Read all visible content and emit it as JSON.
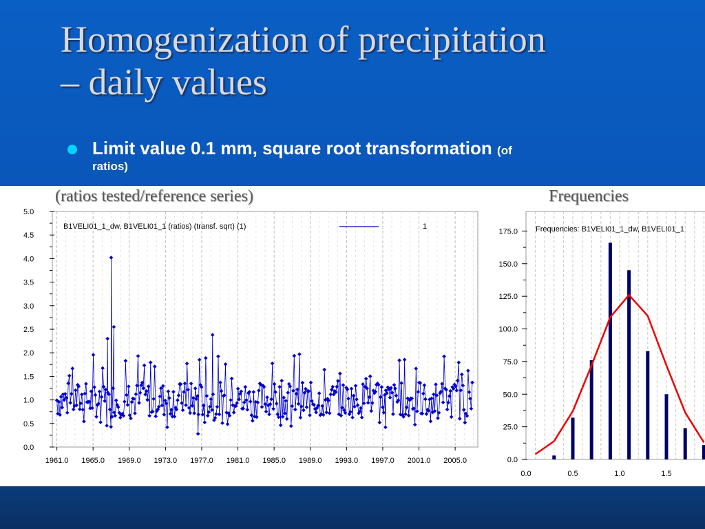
{
  "slide": {
    "title_line1": "Homogenization of precipitation",
    "title_line2": "– daily values",
    "bullet_main": "Limit value 0.1 mm,  square root transformation",
    "bullet_small": "(of",
    "bullet_cont": "ratios)",
    "caption_left": "(ratios tested/reference series)",
    "caption_right": "Frequencies"
  },
  "colors": {
    "bullet": "#00d4ff",
    "series": "#0000cc",
    "bars": "#000066",
    "curve": "#ee0000"
  },
  "chart_data": [
    {
      "type": "line",
      "legend_text": "B1VELI01_1_dw, B1VELI01_1 (ratios) (transf. sqrt) (1)",
      "legend_value": "1",
      "x_tick_labels": [
        "1961.0",
        "1965.0",
        "1969.0",
        "1973.0",
        "1977.0",
        "1981.0",
        "1985.0",
        "1989.0",
        "1993.0",
        "1997.0",
        "2001.0",
        "2005.0"
      ],
      "y_tick_labels": [
        "0.0",
        "0.5",
        "1.0",
        "1.5",
        "2.0",
        "2.5",
        "3.0",
        "3.5",
        "4.0",
        "4.5",
        "5.0"
      ],
      "xlim": [
        1960.5,
        2007.5
      ],
      "ylim": [
        0,
        5
      ],
      "grid": "vertical dashed",
      "notable_points": [
        [
          1967.0,
          4.02
        ],
        [
          1967.3,
          2.55
        ],
        [
          1966.6,
          2.3
        ],
        [
          1978.2,
          2.38
        ],
        [
          1976.6,
          0.28
        ],
        [
          1997.3,
          0.42
        ]
      ]
    },
    {
      "type": "bar",
      "legend_text": "Frequencies: B1VELI01_1_dw, B1VELI01_1",
      "x_tick_labels": [
        "0.0",
        "0.5",
        "1.0",
        "1.5"
      ],
      "y_tick_labels": [
        "0.0",
        "25.0",
        "50.0",
        "75.0",
        "100.0",
        "125.0",
        "150.0",
        "175.0"
      ],
      "ylim": [
        0,
        190
      ],
      "x": [
        0.3,
        0.5,
        0.7,
        0.9,
        1.1,
        1.3,
        1.5,
        1.7,
        1.9
      ],
      "values": [
        3,
        32,
        76,
        166,
        145,
        83,
        50,
        24,
        11
      ],
      "fit_curve": {
        "x": [
          0.1,
          0.3,
          0.5,
          0.7,
          0.9,
          1.1,
          1.3,
          1.5,
          1.7,
          1.9
        ],
        "y": [
          4,
          14,
          37,
          72,
          109,
          126,
          110,
          72,
          36,
          13
        ]
      }
    }
  ]
}
